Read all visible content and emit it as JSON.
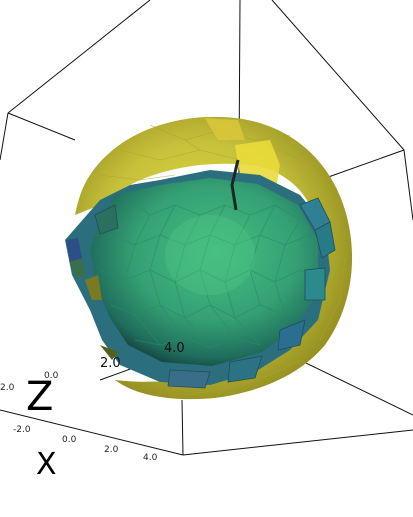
{
  "scene": {
    "type": "3d-render",
    "background": "#ffffff",
    "bounding_box_color": "#111111",
    "colors": {
      "outer_shell": "#c7c33a",
      "inner_sphere": "#3aa876",
      "inner_highlight": "#4cc184",
      "rim": "#2d7a8c"
    },
    "axis_labels": {
      "z": "Z",
      "x": "X"
    },
    "ticks_inner": [
      "2.0",
      "4.0"
    ],
    "ticks_left": [
      "2.0",
      "0.0"
    ],
    "ticks_bottom": [
      "-2.0",
      "0.0",
      "2.0",
      "4.0"
    ]
  }
}
